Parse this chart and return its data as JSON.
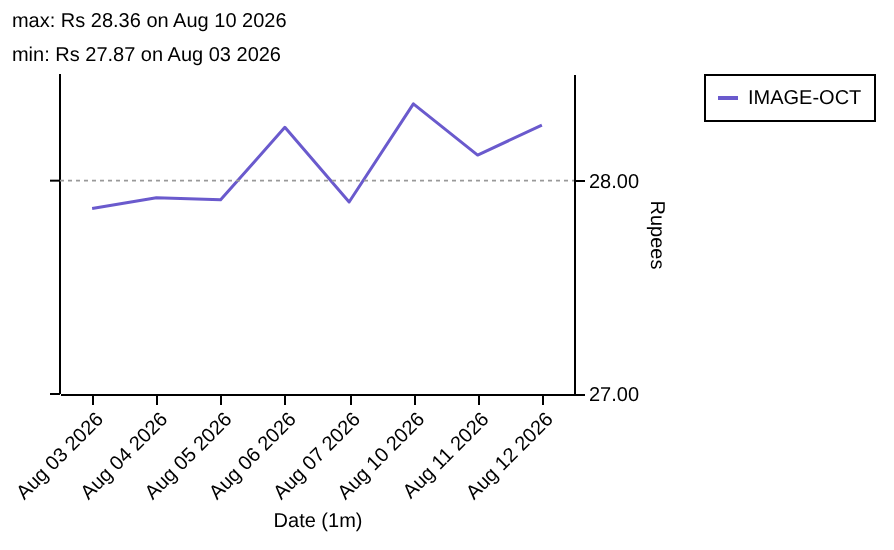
{
  "chart_data": {
    "type": "line",
    "annotations": [
      "max: Rs 28.36 on Aug 10 2026",
      "min: Rs 27.87 on Aug 03 2026"
    ],
    "xlabel": "Date (1m)",
    "ylabel": "Rupees",
    "categories": [
      "Aug 03 2026",
      "Aug 04 2026",
      "Aug 05 2026",
      "Aug 06 2026",
      "Aug 07 2026",
      "Aug 10 2026",
      "Aug 11 2026",
      "Aug 12 2026"
    ],
    "series": [
      {
        "name": "IMAGE-OCT",
        "color": "#6a5acd",
        "values": [
          27.87,
          27.92,
          27.91,
          28.25,
          27.9,
          28.36,
          28.12,
          28.26
        ]
      }
    ],
    "ylim": [
      27.0,
      28.5
    ],
    "yticks": [
      {
        "value": 27,
        "label": "27.00"
      },
      {
        "value": 28,
        "label": "28.00"
      }
    ],
    "ref_lines": [
      {
        "axis": "y",
        "value": 28,
        "color": "#999999",
        "line_style": "dotted"
      }
    ],
    "grid": false,
    "legend": "right",
    "marker": "none",
    "line_style": "solid"
  }
}
